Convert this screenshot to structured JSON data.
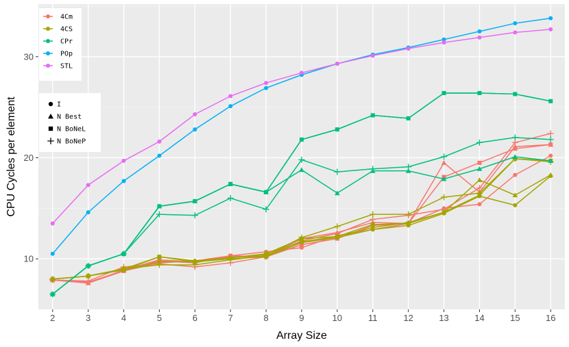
{
  "chart_data": {
    "type": "line",
    "xlabel": "Array Size",
    "ylabel": "CPU Cycles per element",
    "x": [
      2,
      3,
      4,
      5,
      6,
      7,
      8,
      9,
      10,
      11,
      12,
      13,
      14,
      15,
      16
    ],
    "xlim": [
      1.6,
      16.4
    ],
    "ylim": [
      5,
      35.2
    ],
    "x_ticks": [
      "2",
      "3",
      "4",
      "5",
      "6",
      "7",
      "8",
      "9",
      "10",
      "11",
      "12",
      "13",
      "14",
      "15",
      "16"
    ],
    "y_ticks": [
      {
        "value": 10,
        "label": "10"
      },
      {
        "value": 20,
        "label": "20"
      },
      {
        "value": 30,
        "label": "30"
      }
    ],
    "grid": true,
    "legend_color": {
      "placement": "top-left",
      "entries": [
        {
          "name": "4Cm",
          "color": "#F8766D"
        },
        {
          "name": "4CS",
          "color": "#A3A500"
        },
        {
          "name": "CPr",
          "color": "#00BF7D"
        },
        {
          "name": "POp",
          "color": "#00B0F6"
        },
        {
          "name": "STL",
          "color": "#E76BF3"
        }
      ]
    },
    "legend_shape": {
      "placement": "left",
      "entries": [
        {
          "name": "I",
          "shape": "circle"
        },
        {
          "name": "N Best",
          "shape": "triangle"
        },
        {
          "name": "N BoNeL",
          "shape": "square"
        },
        {
          "name": "N BoNeP",
          "shape": "plus"
        }
      ]
    },
    "series": [
      {
        "algo": "4Cm",
        "variant": "I",
        "color": "#F8766D",
        "shape": "circle",
        "values": [
          7.9,
          7.7,
          8.8,
          9.6,
          9.8,
          10.3,
          10.7,
          11.1,
          12.3,
          12.9,
          13.5,
          15.0,
          15.4,
          18.3,
          20.2
        ]
      },
      {
        "algo": "4Cm",
        "variant": "N Best",
        "color": "#F8766D",
        "shape": "triangle",
        "values": [
          7.9,
          7.6,
          8.9,
          9.9,
          9.7,
          10.2,
          10.2,
          12.0,
          12.6,
          13.6,
          13.5,
          19.5,
          16.6,
          21.1,
          21.3
        ]
      },
      {
        "algo": "4Cm",
        "variant": "N BoNeL",
        "color": "#F8766D",
        "shape": "square",
        "values": [
          7.9,
          7.6,
          8.8,
          9.8,
          9.6,
          10.3,
          10.2,
          11.4,
          12.0,
          13.3,
          13.5,
          18.1,
          19.5,
          20.9,
          21.3
        ]
      },
      {
        "algo": "4Cm",
        "variant": "N BoNeP",
        "color": "#F8766D",
        "shape": "plus",
        "values": [
          7.9,
          7.8,
          9.2,
          9.5,
          9.2,
          9.6,
          10.2,
          11.8,
          12.5,
          13.9,
          14.3,
          14.9,
          17.0,
          21.5,
          22.4
        ]
      },
      {
        "algo": "4CS",
        "variant": "I",
        "color": "#A3A500",
        "shape": "circle",
        "values": [
          8.0,
          8.3,
          8.9,
          9.7,
          9.7,
          10.0,
          10.2,
          11.6,
          12.1,
          12.9,
          13.3,
          14.5,
          16.2,
          15.3,
          18.2
        ]
      },
      {
        "algo": "4CS",
        "variant": "N Best",
        "color": "#A3A500",
        "shape": "triangle",
        "values": [
          8.0,
          8.3,
          8.9,
          10.2,
          9.8,
          10.1,
          10.4,
          11.7,
          12.2,
          13.1,
          13.6,
          14.6,
          17.8,
          16.3,
          18.3
        ]
      },
      {
        "algo": "4CS",
        "variant": "N BoNeL",
        "color": "#A3A500",
        "shape": "square",
        "values": [
          8.0,
          8.3,
          9.0,
          10.2,
          9.7,
          10.1,
          10.5,
          12.0,
          12.2,
          13.4,
          13.5,
          14.6,
          16.3,
          19.9,
          19.7
        ]
      },
      {
        "algo": "4CS",
        "variant": "N BoNeP",
        "color": "#A3A500",
        "shape": "plus",
        "values": [
          8.0,
          8.3,
          9.0,
          9.4,
          9.4,
          9.9,
          10.3,
          12.1,
          13.2,
          14.4,
          14.4,
          16.1,
          16.5,
          19.9,
          19.6
        ]
      },
      {
        "algo": "CPr",
        "variant": "I",
        "color": "#00BF7D",
        "shape": "circle",
        "values": [
          6.5,
          9.3,
          10.5,
          15.2,
          15.7,
          17.4,
          16.6,
          21.8,
          22.8,
          24.2,
          23.9,
          26.4,
          26.4,
          26.3,
          25.6
        ]
      },
      {
        "algo": "CPr",
        "variant": "N Best",
        "color": "#00BF7D",
        "shape": "triangle",
        "values": [
          6.5,
          9.3,
          10.5,
          15.2,
          15.7,
          17.4,
          16.6,
          18.8,
          16.5,
          18.7,
          18.7,
          17.9,
          18.9,
          20.1,
          19.7
        ]
      },
      {
        "algo": "CPr",
        "variant": "N BoNeL",
        "color": "#00BF7D",
        "shape": "square",
        "values": [
          6.5,
          9.3,
          10.5,
          15.2,
          15.7,
          17.4,
          16.6,
          21.8,
          22.8,
          24.2,
          23.9,
          26.4,
          26.4,
          26.3,
          25.6
        ]
      },
      {
        "algo": "CPr",
        "variant": "N BoNeP",
        "color": "#00BF7D",
        "shape": "plus",
        "values": [
          6.5,
          9.3,
          10.5,
          14.4,
          14.3,
          16.0,
          14.9,
          19.8,
          18.6,
          18.9,
          19.1,
          20.1,
          21.5,
          22.0,
          21.8
        ]
      },
      {
        "algo": "POp",
        "variant": "I",
        "color": "#00B0F6",
        "shape": "circle",
        "values": [
          10.5,
          14.6,
          17.7,
          20.2,
          22.8,
          25.1,
          26.9,
          28.2,
          29.3,
          30.2,
          30.9,
          31.7,
          32.5,
          33.3,
          33.8
        ]
      },
      {
        "algo": "STL",
        "variant": "I",
        "color": "#E76BF3",
        "shape": "circle",
        "values": [
          13.5,
          17.3,
          19.7,
          21.6,
          24.3,
          26.1,
          27.4,
          28.4,
          29.3,
          30.1,
          30.8,
          31.4,
          31.9,
          32.4,
          32.7
        ]
      }
    ]
  }
}
